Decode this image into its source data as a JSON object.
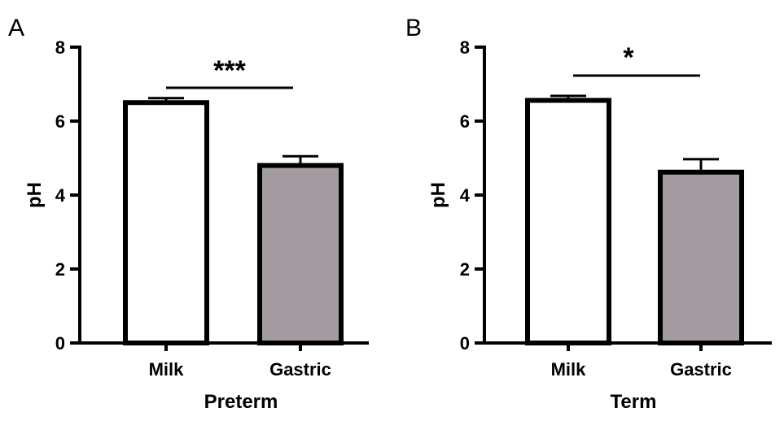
{
  "chart_data": [
    {
      "type": "bar",
      "panel": "A",
      "categories": [
        "Milk",
        "Gastric"
      ],
      "values": [
        6.5,
        4.8
      ],
      "errors": [
        0.12,
        0.25
      ],
      "bar_colors": [
        "#ffffff",
        "#a29ca1"
      ],
      "xlabel": "Preterm",
      "ylabel": "pH",
      "ylim": [
        0,
        8
      ],
      "yticks": [
        "0",
        "2",
        "4",
        "6",
        "8"
      ],
      "significance": "***"
    },
    {
      "type": "bar",
      "panel": "B",
      "categories": [
        "Milk",
        "Gastric"
      ],
      "values": [
        6.56,
        4.62
      ],
      "errors": [
        0.12,
        0.35
      ],
      "bar_colors": [
        "#ffffff",
        "#a29ca1"
      ],
      "xlabel": "Term",
      "ylabel": "pH",
      "ylim": [
        0,
        8
      ],
      "yticks": [
        "0",
        "2",
        "4",
        "6",
        "8"
      ],
      "significance": "*"
    }
  ]
}
